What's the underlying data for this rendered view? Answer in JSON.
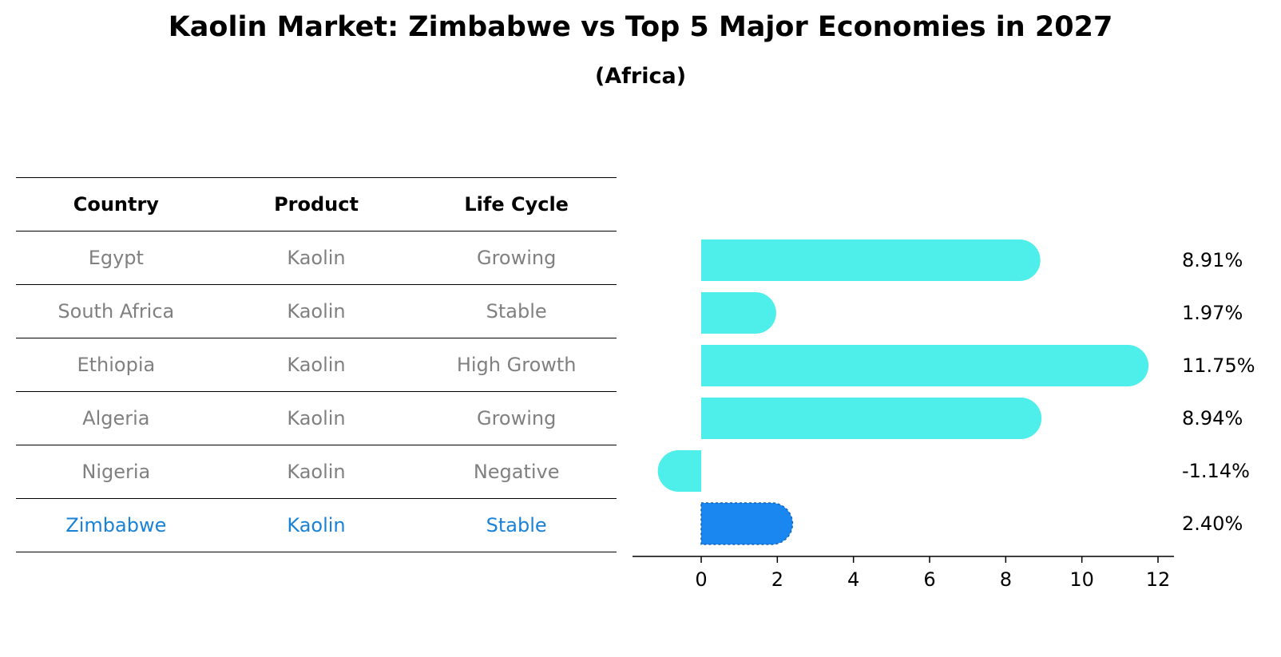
{
  "header": {
    "title": "Kaolin Market: Zimbabwe vs Top 5 Major Economies in 2027",
    "subtitle": "(Africa)"
  },
  "table": {
    "columns": [
      "Country",
      "Product",
      "Life Cycle"
    ],
    "rows": [
      [
        "Egypt",
        "Kaolin",
        "Growing"
      ],
      [
        "South Africa",
        "Kaolin",
        "Stable"
      ],
      [
        "Ethiopia",
        "Kaolin",
        "High Growth"
      ],
      [
        "Algeria",
        "Kaolin",
        "Growing"
      ],
      [
        "Nigeria",
        "Kaolin",
        "Negative"
      ],
      [
        "Zimbabwe",
        "Kaolin",
        "Stable"
      ]
    ],
    "highlight_row": 5
  },
  "chart_data": {
    "type": "bar",
    "orientation": "horizontal",
    "categories": [
      "Egypt",
      "South Africa",
      "Ethiopia",
      "Algeria",
      "Nigeria",
      "Zimbabwe"
    ],
    "values": [
      8.91,
      1.97,
      11.75,
      8.94,
      -1.14,
      2.4
    ],
    "value_labels": [
      "8.91%",
      "1.97%",
      "11.75%",
      "8.94%",
      "-1.14%",
      "2.40%"
    ],
    "xticks": [
      0,
      2,
      4,
      6,
      8,
      10,
      12
    ],
    "xlim": [
      -1.8,
      12.4
    ],
    "grid": false,
    "colors": {
      "default": "#4eeeea",
      "highlight": "#1a87f0"
    },
    "highlight_index": 5
  }
}
